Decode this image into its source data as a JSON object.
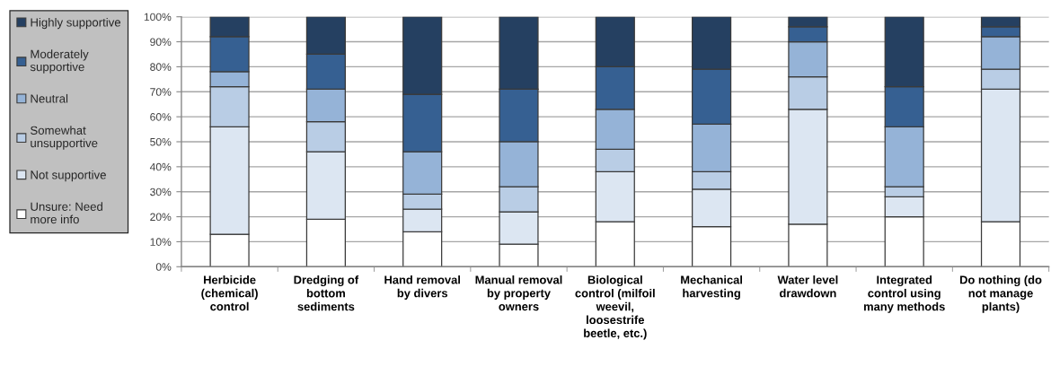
{
  "chart_data": {
    "type": "bar",
    "stacked": true,
    "categories": [
      "Herbicide\n(chemical)\ncontrol",
      "Dredging of\nbottom\nsediments",
      "Hand removal\nby divers",
      "Manual removal\nby property\nowners",
      "Biological\ncontrol (milfoil\nweevil,\nloosestrife\nbeetle, etc.)",
      "Mechanical\nharvesting",
      "Water level\ndrawdown",
      "Integrated\ncontrol using\nmany methods",
      "Do nothing (do\nnot manage\nplants)"
    ],
    "series": [
      {
        "name": "Unsure: Need more info",
        "color": "#ffffff",
        "values": [
          13,
          19,
          14,
          9,
          18,
          16,
          17,
          20,
          18
        ]
      },
      {
        "name": "Not supportive",
        "color": "#dce6f2",
        "values": [
          43,
          27,
          9,
          13,
          20,
          15,
          46,
          8,
          53
        ]
      },
      {
        "name": "Somewhat unsupportive",
        "color": "#b9cde5",
        "values": [
          16,
          12,
          6,
          10,
          9,
          7,
          13,
          4,
          8
        ]
      },
      {
        "name": "Neutral",
        "color": "#95b3d7",
        "values": [
          6,
          13,
          17,
          18,
          16,
          19,
          14,
          24,
          13
        ]
      },
      {
        "name": "Moderately supportive",
        "color": "#366092",
        "values": [
          14,
          14,
          23,
          21,
          17,
          22,
          6,
          16,
          4
        ]
      },
      {
        "name": "Highly supportive",
        "color": "#254061",
        "values": [
          8,
          15,
          31,
          29,
          20,
          21,
          4,
          28,
          4
        ]
      }
    ],
    "ylim": [
      0,
      100
    ],
    "yticks": [
      {
        "value": 0,
        "label": "0%"
      },
      {
        "value": 10,
        "label": "10%"
      },
      {
        "value": 20,
        "label": "20%"
      },
      {
        "value": 30,
        "label": "30%"
      },
      {
        "value": 40,
        "label": "40%"
      },
      {
        "value": 50,
        "label": "50%"
      },
      {
        "value": 60,
        "label": "60%"
      },
      {
        "value": 70,
        "label": "70%"
      },
      {
        "value": 80,
        "label": "80%"
      },
      {
        "value": 90,
        "label": "90%"
      },
      {
        "value": 100,
        "label": "100%"
      }
    ],
    "grid": "y",
    "legend": "left"
  }
}
